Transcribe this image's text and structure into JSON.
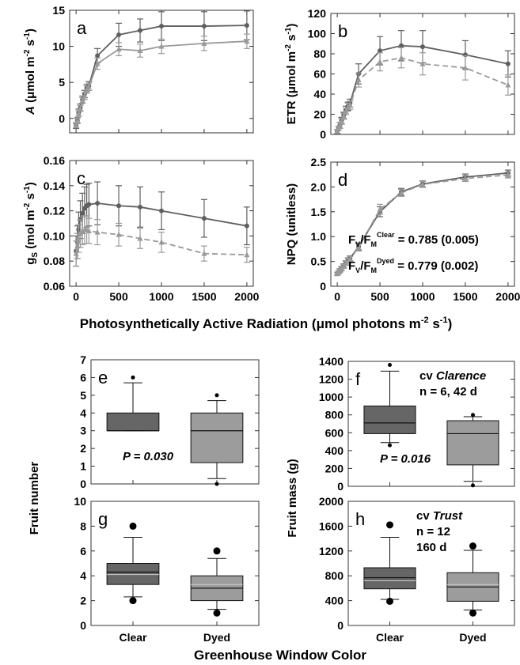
{
  "figure": {
    "x_title_top": "Photosynthetically Active Radiation (μmol photons m",
    "x_title_top_sup1": "-2",
    "x_title_top_mid": " s",
    "x_title_top_sup2": "-1",
    "x_title_top_end": ")",
    "x_title_bottom": "Greenhouse Window Color"
  },
  "colors": {
    "clear": "#5f5f5f",
    "dyed": "#9a9a9a",
    "box_clear": "#666666",
    "box_dyed": "#9c9c9c"
  },
  "chart_data": [
    {
      "id": "a",
      "type": "line",
      "letter": "a",
      "ylabel": {
        "pre": "A",
        "mid": " (μmol m",
        "sup1": "-2",
        "mid2": " s",
        "sup2": "-1",
        "end": ")"
      },
      "xlim": [
        0,
        2000
      ],
      "ylim": [
        -2,
        15
      ],
      "xticks": [
        "0",
        "500",
        "1000",
        "1500",
        "2000"
      ],
      "xtick_values": [
        0,
        500,
        1000,
        1500,
        2000
      ],
      "yticks": [
        "0",
        "5",
        "10",
        "15"
      ],
      "ytick_values": [
        0,
        5,
        10,
        15
      ],
      "show_xticklabels": false,
      "series": [
        {
          "name": "Clear",
          "style": "solid",
          "x": [
            0,
            15,
            30,
            50,
            75,
            100,
            125,
            150,
            250,
            500,
            750,
            1000,
            1500,
            2000
          ],
          "y": [
            -1.0,
            -0.3,
            0.8,
            1.5,
            2.6,
            3.4,
            4.2,
            4.5,
            8.7,
            11.6,
            12.2,
            12.8,
            12.8,
            12.9
          ],
          "err": [
            0.4,
            0.4,
            0.5,
            0.5,
            0.5,
            0.5,
            0.5,
            0.6,
            1.0,
            1.6,
            1.6,
            2.0,
            2.0,
            2.0
          ]
        },
        {
          "name": "Dyed",
          "style": "solid",
          "x": [
            0,
            15,
            30,
            50,
            75,
            100,
            125,
            150,
            250,
            500,
            750,
            1000,
            1500,
            2000
          ],
          "y": [
            -1.0,
            -0.3,
            0.7,
            1.4,
            2.5,
            3.1,
            4.0,
            4.4,
            7.6,
            9.6,
            9.4,
            10.0,
            10.4,
            10.7
          ],
          "err": [
            0.3,
            0.3,
            0.4,
            0.4,
            0.4,
            0.5,
            0.5,
            0.5,
            0.8,
            0.9,
            0.9,
            1.0,
            1.0,
            1.0
          ]
        }
      ]
    },
    {
      "id": "b",
      "type": "line",
      "letter": "b",
      "ylabel": {
        "pre": "ETR",
        "mid": " (μmol m",
        "sup1": "-2",
        "mid2": " s",
        "sup2": "-1",
        "end": ")"
      },
      "xlim": [
        0,
        2000
      ],
      "ylim": [
        0,
        120
      ],
      "xticks": [
        "0",
        "500",
        "1000",
        "1500",
        "2000"
      ],
      "xtick_values": [
        0,
        500,
        1000,
        1500,
        2000
      ],
      "yticks": [
        "0",
        "20",
        "40",
        "60",
        "80",
        "100",
        "120"
      ],
      "ytick_values": [
        0,
        20,
        40,
        60,
        80,
        100,
        120
      ],
      "show_xticklabels": false,
      "series": [
        {
          "name": "Clear",
          "style": "solid",
          "x": [
            0,
            15,
            30,
            50,
            75,
            100,
            125,
            150,
            250,
            500,
            750,
            1000,
            1500,
            2000
          ],
          "y": [
            3,
            6,
            9,
            14,
            19,
            24,
            28,
            31,
            60,
            83,
            88,
            87,
            79,
            70
          ],
          "err": [
            2,
            2,
            3,
            3,
            3,
            4,
            4,
            4,
            10,
            14,
            15,
            16,
            14,
            13
          ]
        },
        {
          "name": "Dyed",
          "style": "dashed",
          "x": [
            0,
            15,
            30,
            50,
            75,
            100,
            125,
            150,
            250,
            500,
            750,
            1000,
            1500,
            2000
          ],
          "y": [
            3,
            6,
            9,
            13,
            18,
            23,
            27,
            29,
            54,
            72,
            76,
            70,
            66,
            49
          ],
          "err": [
            2,
            2,
            3,
            3,
            3,
            3,
            4,
            4,
            7,
            9,
            10,
            11,
            12,
            10
          ]
        }
      ]
    },
    {
      "id": "c",
      "type": "line",
      "letter": "c",
      "ylabel": {
        "pre": "g",
        "sub": "S",
        "mid": " (mol m",
        "sup1": "-2",
        "mid2": " s",
        "sup2": "-1",
        "end": ")"
      },
      "xlim": [
        0,
        2000
      ],
      "ylim": [
        0.06,
        0.16
      ],
      "xticks": [
        "0",
        "500",
        "1000",
        "1500",
        "2000"
      ],
      "xtick_values": [
        0,
        500,
        1000,
        1500,
        2000
      ],
      "yticks": [
        "0.06",
        "0.08",
        "0.10",
        "0.12",
        "0.14",
        "0.16"
      ],
      "ytick_values": [
        0.06,
        0.08,
        0.1,
        0.12,
        0.14,
        0.16
      ],
      "show_xticklabels": true,
      "series": [
        {
          "name": "Clear",
          "style": "solid",
          "x": [
            0,
            15,
            30,
            50,
            75,
            100,
            125,
            150,
            250,
            500,
            750,
            1000,
            1500,
            2000
          ],
          "y": [
            0.088,
            0.095,
            0.105,
            0.113,
            0.118,
            0.122,
            0.124,
            0.125,
            0.126,
            0.124,
            0.123,
            0.12,
            0.114,
            0.108
          ],
          "err": [
            0.012,
            0.013,
            0.014,
            0.015,
            0.016,
            0.017,
            0.017,
            0.017,
            0.017,
            0.016,
            0.016,
            0.015,
            0.015,
            0.015
          ]
        },
        {
          "name": "Dyed",
          "style": "dashed",
          "x": [
            0,
            15,
            30,
            50,
            75,
            100,
            125,
            150,
            250,
            500,
            750,
            1000,
            1500,
            2000
          ],
          "y": [
            0.086,
            0.092,
            0.098,
            0.102,
            0.104,
            0.105,
            0.105,
            0.104,
            0.103,
            0.101,
            0.098,
            0.095,
            0.086,
            0.085
          ],
          "err": [
            0.01,
            0.01,
            0.011,
            0.011,
            0.011,
            0.011,
            0.011,
            0.01,
            0.01,
            0.009,
            0.008,
            0.008,
            0.006,
            0.006
          ]
        }
      ]
    },
    {
      "id": "d",
      "type": "line",
      "letter": "d",
      "ylabel": {
        "pre": "NPQ (unitless)"
      },
      "xlim": [
        0,
        2000
      ],
      "ylim": [
        0,
        2.5
      ],
      "xticks": [
        "0",
        "500",
        "1000",
        "1500",
        "2000"
      ],
      "xtick_values": [
        0,
        500,
        1000,
        1500,
        2000
      ],
      "yticks": [
        "0",
        "0.5",
        "1.0",
        "1.5",
        "2.0",
        "2.5"
      ],
      "ytick_values": [
        0,
        0.5,
        1.0,
        1.5,
        2.0,
        2.5
      ],
      "show_xticklabels": true,
      "annotations": [
        {
          "main1": "F",
          "sub1": "V",
          "main2": "/F",
          "sub2": "M",
          "sup": "Clear",
          "value": " = 0.785 (0.005)"
        },
        {
          "main1": "F",
          "sub1": "V",
          "main2": "/F",
          "sub2": "M",
          "sup": "Dyed",
          "value": " = 0.779 (0.002)"
        }
      ],
      "series": [
        {
          "name": "Clear",
          "style": "solid",
          "x": [
            0,
            15,
            30,
            50,
            75,
            100,
            125,
            150,
            250,
            500,
            750,
            1000,
            1500,
            2000
          ],
          "y": [
            0.25,
            0.28,
            0.32,
            0.36,
            0.41,
            0.47,
            0.52,
            0.56,
            0.8,
            1.5,
            1.9,
            2.06,
            2.2,
            2.28
          ],
          "err": [
            0.03,
            0.03,
            0.03,
            0.04,
            0.04,
            0.04,
            0.05,
            0.05,
            0.07,
            0.1,
            0.07,
            0.06,
            0.06,
            0.06
          ]
        },
        {
          "name": "Dyed",
          "style": "dashed",
          "x": [
            0,
            15,
            30,
            50,
            75,
            100,
            125,
            150,
            250,
            500,
            750,
            1000,
            1500,
            2000
          ],
          "y": [
            0.25,
            0.28,
            0.31,
            0.35,
            0.4,
            0.46,
            0.51,
            0.55,
            0.78,
            1.55,
            1.88,
            2.05,
            2.17,
            2.24
          ],
          "err": [
            0.03,
            0.03,
            0.03,
            0.04,
            0.04,
            0.04,
            0.05,
            0.05,
            0.07,
            0.1,
            0.07,
            0.06,
            0.06,
            0.06
          ]
        }
      ]
    },
    {
      "id": "e",
      "type": "box",
      "letter": "e",
      "ylabel": "Fruit number",
      "ylabel_shared": true,
      "ylim": [
        0,
        7
      ],
      "yticks": [
        "0",
        "1",
        "2",
        "3",
        "4",
        "5",
        "6",
        "7"
      ],
      "ytick_values": [
        0,
        1,
        2,
        3,
        4,
        5,
        6,
        7
      ],
      "categories": [
        "Clear",
        "Dyed"
      ],
      "show_xticklabels": false,
      "annotations": [
        {
          "text": "P = 0.030"
        }
      ],
      "boxes": [
        {
          "name": "Clear",
          "q1": 3.0,
          "median": 3.0,
          "q3": 4.0,
          "whisker_low": 3.0,
          "whisker_high": 5.7,
          "outliers": [
            6.0
          ]
        },
        {
          "name": "Dyed",
          "q1": 1.2,
          "median": 3.0,
          "q3": 4.0,
          "whisker_low": 0.3,
          "whisker_high": 4.7,
          "outliers": [
            5.0,
            0.0
          ]
        }
      ]
    },
    {
      "id": "f",
      "type": "box",
      "letter": "f",
      "ylabel": "Fruit mass (g)",
      "ylabel_shared": true,
      "ylim": [
        0,
        1400
      ],
      "yticks": [
        "0",
        "200",
        "400",
        "600",
        "800",
        "1000",
        "1200",
        "1400"
      ],
      "ytick_values": [
        0,
        200,
        400,
        600,
        800,
        1000,
        1200,
        1400
      ],
      "categories": [
        "Clear",
        "Dyed"
      ],
      "show_xticklabels": false,
      "annotations": [
        {
          "text": "P = 0.016"
        },
        {
          "pre": "cv ",
          "italic": "Clarence"
        },
        {
          "text": "n = 6, 42 d"
        }
      ],
      "boxes": [
        {
          "name": "Clear",
          "q1": 590,
          "median": 710,
          "q3": 900,
          "whisker_low": 490,
          "whisker_high": 1290,
          "outliers": [
            1360,
            460
          ]
        },
        {
          "name": "Dyed",
          "q1": 240,
          "median": 590,
          "q3": 735,
          "whisker_low": 55,
          "whisker_high": 780,
          "outliers": [
            800,
            10
          ]
        }
      ]
    },
    {
      "id": "g",
      "type": "box",
      "letter": "g",
      "ylabel": "",
      "ylim": [
        0,
        10
      ],
      "yticks": [
        "0",
        "2",
        "4",
        "6",
        "8",
        "10"
      ],
      "ytick_values": [
        0,
        2,
        4,
        6,
        8,
        10
      ],
      "categories": [
        "Clear",
        "Dyed"
      ],
      "show_xticklabels": true,
      "boxes": [
        {
          "name": "Clear",
          "q1": 3.3,
          "median": 4.3,
          "q3": 5.0,
          "mean": 4.1,
          "whisker_low": 2.3,
          "whisker_high": 7.1,
          "outliers": [
            8.0,
            2.0
          ]
        },
        {
          "name": "Dyed",
          "q1": 2.0,
          "median": 3.0,
          "q3": 4.0,
          "mean": 3.3,
          "whisker_low": 1.3,
          "whisker_high": 5.4,
          "outliers": [
            6.0,
            1.0
          ]
        }
      ]
    },
    {
      "id": "h",
      "type": "box",
      "letter": "h",
      "ylabel": "",
      "ylim": [
        0,
        2000
      ],
      "yticks": [
        "0",
        "400",
        "800",
        "1200",
        "1600",
        "2000"
      ],
      "ytick_values": [
        0,
        400,
        800,
        1200,
        1600,
        2000
      ],
      "categories": [
        "Clear",
        "Dyed"
      ],
      "show_xticklabels": true,
      "annotations": [
        {
          "pre": "cv ",
          "italic": "Trust"
        },
        {
          "text": "n = 12"
        },
        {
          "text": "160 d"
        }
      ],
      "boxes": [
        {
          "name": "Clear",
          "q1": 590,
          "median": 770,
          "q3": 930,
          "mean": 720,
          "whisker_low": 420,
          "whisker_high": 1420,
          "outliers": [
            1620,
            390
          ]
        },
        {
          "name": "Dyed",
          "q1": 390,
          "median": 620,
          "q3": 850,
          "mean": 660,
          "whisker_low": 250,
          "whisker_high": 1210,
          "outliers": [
            1280,
            200
          ]
        }
      ]
    }
  ]
}
